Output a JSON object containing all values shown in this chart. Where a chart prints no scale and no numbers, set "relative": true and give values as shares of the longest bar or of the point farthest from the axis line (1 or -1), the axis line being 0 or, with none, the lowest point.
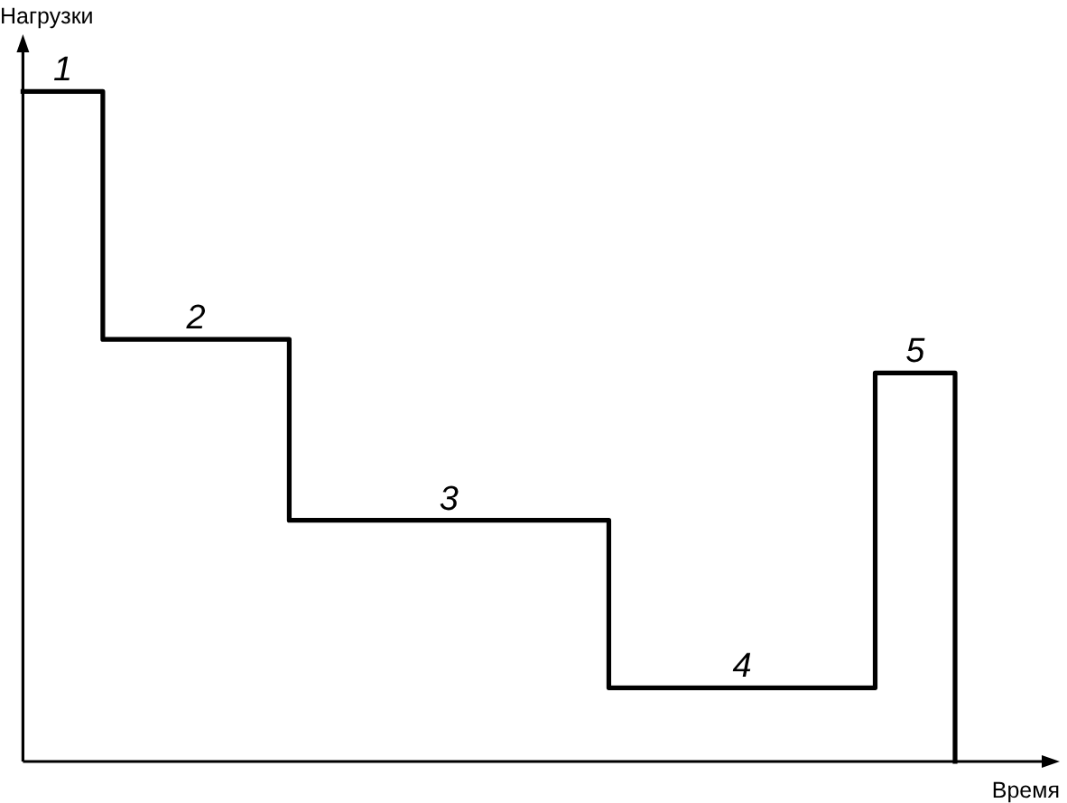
{
  "chart_data": {
    "type": "step",
    "xlabel": "Время",
    "ylabel": "Нагрузки",
    "relative": true,
    "categories": [
      null,
      null,
      null,
      null,
      null,
      null,
      null,
      null,
      null,
      null,
      null,
      null,
      null,
      null,
      null,
      null,
      null,
      null,
      null,
      null,
      null,
      null,
      null,
      null,
      null,
      null,
      null,
      null,
      null,
      null,
      null,
      null,
      null,
      null,
      null,
      null
    ],
    "series": [
      {
        "color": "#000000",
        "values": [
          1,
          1,
          1,
          0.63,
          0.63,
          0.63,
          0.63,
          0.63,
          0.63,
          0.63,
          0.36,
          0.36,
          0.36,
          0.36,
          0.36,
          0.36,
          0.36,
          0.36,
          0.36,
          0.36,
          0.36,
          0.36,
          0.11,
          0.11,
          0.11,
          0.11,
          0.11,
          0.11,
          0.11,
          0.11,
          0.11,
          0.11,
          0.58,
          0.58,
          0.58,
          0
        ]
      }
    ],
    "annotations": [
      "1",
      "2",
      "3",
      "4",
      "5"
    ]
  }
}
